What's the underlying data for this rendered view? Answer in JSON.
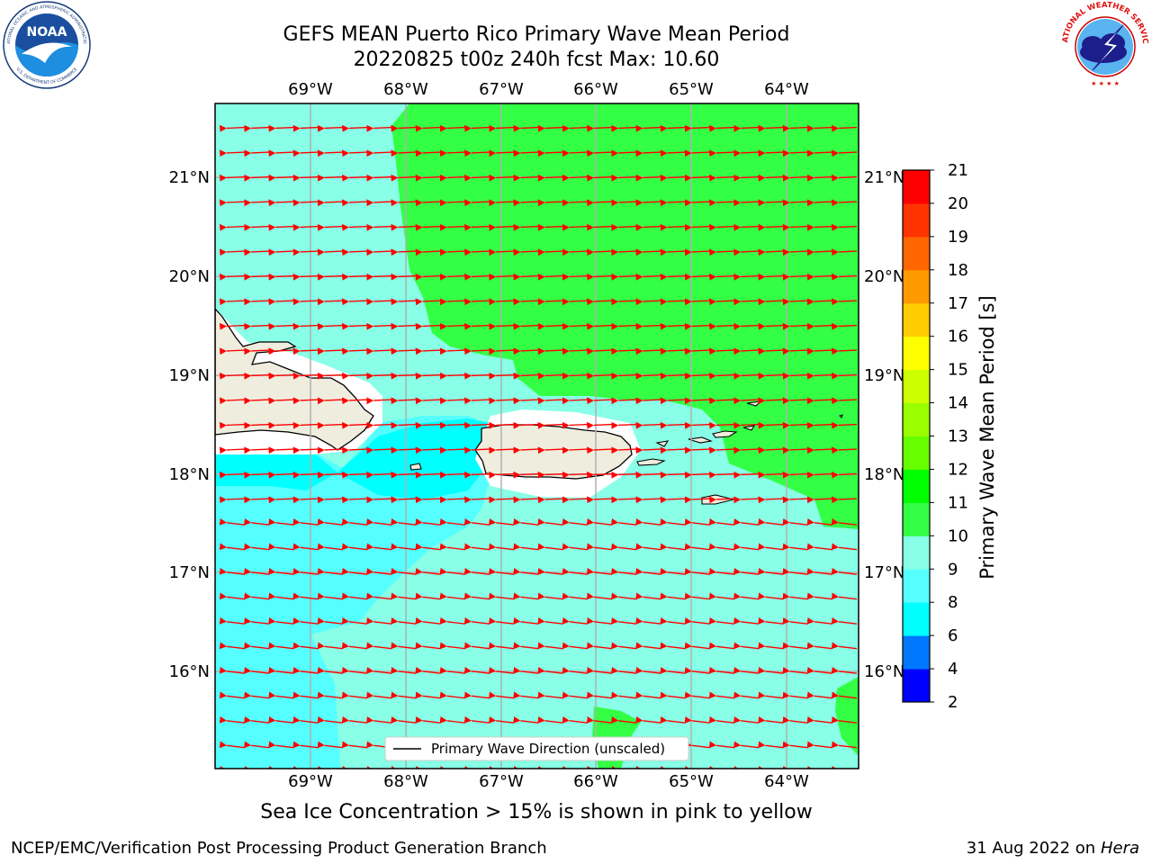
{
  "title": "GEFS MEAN Puerto Rico Primary Wave Mean Period",
  "subtitle_line": "20220825 t00z 240h fcst   Max: 10.60",
  "sea_ice_note": "Sea Ice Concentration > 15% is shown in pink to yellow",
  "footer": {
    "left": "NCEP/EMC/Verification Post Processing Product Generation Branch",
    "date": "31 Aug 2022 on",
    "machine": "Hera"
  },
  "legend": {
    "label": "Primary Wave Direction (unscaled)"
  },
  "colorbar": {
    "label": "Primary Wave Mean Period [s]",
    "ticks": [
      "2",
      "4",
      "6",
      "8",
      "9",
      "10",
      "11",
      "12",
      "13",
      "14",
      "15",
      "16",
      "17",
      "18",
      "19",
      "20",
      "21"
    ],
    "colors": [
      "#0000ff",
      "#0077ff",
      "#00ffff",
      "#55ffff",
      "#88ffe6",
      "#33ff44",
      "#00ff00",
      "#66ff00",
      "#99ff00",
      "#ccff00",
      "#ffff00",
      "#ffcc00",
      "#ff9900",
      "#ff6600",
      "#ff3300",
      "#ff0000"
    ]
  },
  "map": {
    "lon_labels": [
      "69°W",
      "68°W",
      "67°W",
      "66°W",
      "65°W",
      "64°W"
    ],
    "lat_labels": [
      "21°N",
      "20°N",
      "19°N",
      "18°N",
      "17°N",
      "16°N"
    ],
    "lon_range": [
      -70.0,
      -63.25
    ],
    "lat_range": [
      15.0,
      21.75
    ],
    "land_color": "#efedde",
    "coast_color": "#000000",
    "arrow_color": "#ff0000",
    "grid_color": "#b0b0b0"
  },
  "logos": {
    "noaa": "NOAA",
    "noaa_ring": "NATIONAL OCEANIC AND ATMOSPHERIC ADMINISTRATION",
    "noaa_ring_bottom": "U.S. DEPARTMENT OF COMMERCE",
    "nws_ring": "NATIONAL WEATHER SERVICE"
  }
}
